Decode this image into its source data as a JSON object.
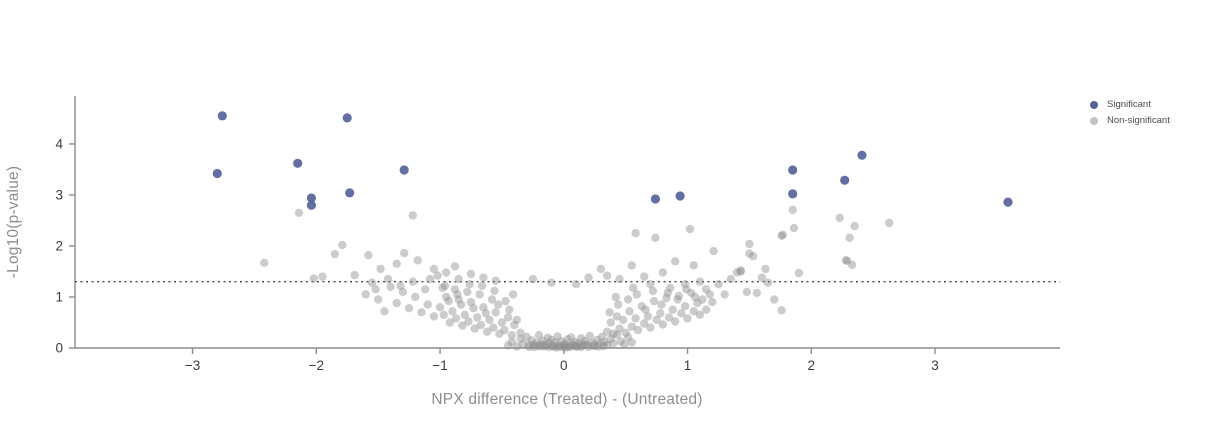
{
  "chart_data": {
    "type": "scatter",
    "title": "",
    "xlabel": "NPX difference (Treated) - (Untreated)",
    "ylabel": "-Log10(p-value)",
    "xlim": [
      -3.95,
      4.01
    ],
    "ylim": [
      0,
      4.94
    ],
    "x_ticks": [
      -3,
      -2,
      -1,
      0,
      1,
      2,
      3
    ],
    "y_ticks": [
      0,
      1,
      2,
      3,
      4
    ],
    "grid": false,
    "threshold_line": {
      "y": 1.3,
      "style": "dotted",
      "color": "#4a4a4a"
    },
    "legend": {
      "position": "top-right",
      "entries": [
        {
          "label": "Significant",
          "color": "#56639a"
        },
        {
          "label": "Non-significant",
          "color": "#c3c3c3"
        }
      ]
    },
    "colors": {
      "significant": "#56639a",
      "nonsignificant": "#8f8f8f",
      "axis": "#8c8c8c",
      "tick_label": "#3c3c3c",
      "axis_title": "#8e8e8e"
    },
    "series": [
      {
        "name": "Significant",
        "points": [
          [
            -2.8,
            3.42
          ],
          [
            -2.76,
            4.55
          ],
          [
            -2.15,
            3.62
          ],
          [
            -2.04,
            2.94
          ],
          [
            -2.04,
            2.8
          ],
          [
            -1.75,
            4.51
          ],
          [
            -1.73,
            3.04
          ],
          [
            -1.29,
            3.49
          ],
          [
            0.74,
            2.92
          ],
          [
            0.94,
            2.98
          ],
          [
            1.85,
            3.49
          ],
          [
            1.85,
            3.02
          ],
          [
            2.27,
            3.29
          ],
          [
            2.41,
            3.78
          ],
          [
            3.59,
            2.86
          ]
        ]
      },
      {
        "name": "Non-significant",
        "points": [
          [
            -0.45,
            0.05
          ],
          [
            -0.42,
            0.12
          ],
          [
            -0.38,
            0.03
          ],
          [
            -0.35,
            0.18
          ],
          [
            -0.33,
            0.08
          ],
          [
            -0.3,
            0.22
          ],
          [
            -0.28,
            0.06
          ],
          [
            -0.26,
            0.15
          ],
          [
            -0.24,
            0.02
          ],
          [
            -0.22,
            0.1
          ],
          [
            -0.2,
            0.25
          ],
          [
            -0.18,
            0.07
          ],
          [
            -0.17,
            0.14
          ],
          [
            -0.15,
            0.04
          ],
          [
            -0.13,
            0.2
          ],
          [
            -0.12,
            0.09
          ],
          [
            -0.1,
            0.16
          ],
          [
            -0.08,
            0.03
          ],
          [
            -0.07,
            0.11
          ],
          [
            -0.05,
            0.23
          ],
          [
            -0.04,
            0.05
          ],
          [
            -0.02,
            0.13
          ],
          [
            0.0,
            0.02
          ],
          [
            0.01,
            0.08
          ],
          [
            0.03,
            0.17
          ],
          [
            0.04,
            0.04
          ],
          [
            0.06,
            0.21
          ],
          [
            0.07,
            0.06
          ],
          [
            0.09,
            0.12
          ],
          [
            0.1,
            0.03
          ],
          [
            0.12,
            0.09
          ],
          [
            0.14,
            0.19
          ],
          [
            0.15,
            0.05
          ],
          [
            0.17,
            0.14
          ],
          [
            0.19,
            0.07
          ],
          [
            0.21,
            0.24
          ],
          [
            0.23,
            0.1
          ],
          [
            0.25,
            0.04
          ],
          [
            0.27,
            0.16
          ],
          [
            0.29,
            0.08
          ],
          [
            0.31,
            0.22
          ],
          [
            0.33,
            0.12
          ],
          [
            0.35,
            0.06
          ],
          [
            0.38,
            0.18
          ],
          [
            0.4,
            0.09
          ],
          [
            0.43,
            0.26
          ],
          [
            0.46,
            0.13
          ],
          [
            0.49,
            0.07
          ],
          [
            0.52,
            0.21
          ],
          [
            0.55,
            0.11
          ],
          [
            -0.06,
            0.01
          ],
          [
            -0.03,
            0.02
          ],
          [
            0.0,
            0.05
          ],
          [
            0.02,
            0.01
          ],
          [
            0.05,
            0.02
          ],
          [
            -0.09,
            0.04
          ],
          [
            0.08,
            0.05
          ],
          [
            -0.12,
            0.02
          ],
          [
            0.11,
            0.03
          ],
          [
            -0.15,
            0.05
          ],
          [
            0.14,
            0.02
          ],
          [
            -0.18,
            0.03
          ],
          [
            0.17,
            0.06
          ],
          [
            -0.21,
            0.04
          ],
          [
            0.2,
            0.02
          ],
          [
            0.24,
            0.05
          ],
          [
            -0.24,
            0.06
          ],
          [
            0.28,
            0.03
          ],
          [
            -0.28,
            0.02
          ],
          [
            0.32,
            0.04
          ],
          [
            -0.35,
            0.3
          ],
          [
            -0.4,
            0.45
          ],
          [
            -0.42,
            0.25
          ],
          [
            -0.45,
            0.6
          ],
          [
            -0.48,
            0.35
          ],
          [
            -0.5,
            0.5
          ],
          [
            -0.52,
            0.28
          ],
          [
            -0.55,
            0.7
          ],
          [
            -0.57,
            0.4
          ],
          [
            -0.6,
            0.55
          ],
          [
            -0.62,
            0.32
          ],
          [
            -0.65,
            0.8
          ],
          [
            -0.67,
            0.45
          ],
          [
            -0.7,
            0.6
          ],
          [
            -0.72,
            0.38
          ],
          [
            -0.75,
            0.9
          ],
          [
            -0.77,
            0.52
          ],
          [
            -0.8,
            0.65
          ],
          [
            -0.82,
            0.44
          ],
          [
            -0.85,
            0.95
          ],
          [
            -0.87,
            0.58
          ],
          [
            -0.9,
            0.72
          ],
          [
            -0.92,
            0.5
          ],
          [
            -0.95,
            1.0
          ],
          [
            -0.97,
            0.65
          ],
          [
            -1.0,
            0.8
          ],
          [
            -0.38,
            0.55
          ],
          [
            -0.44,
            0.75
          ],
          [
            -0.53,
            0.85
          ],
          [
            -0.58,
            0.95
          ],
          [
            -0.63,
            0.68
          ],
          [
            -0.68,
            1.05
          ],
          [
            -0.73,
            0.78
          ],
          [
            -0.78,
            1.1
          ],
          [
            -0.83,
            0.85
          ],
          [
            -0.88,
            1.15
          ],
          [
            -0.93,
            0.92
          ],
          [
            -0.98,
            1.18
          ],
          [
            -0.47,
            0.92
          ],
          [
            -0.56,
            1.12
          ],
          [
            -0.66,
            1.22
          ],
          [
            -0.76,
            1.25
          ],
          [
            -0.86,
            1.05
          ],
          [
            -0.96,
            1.22
          ],
          [
            -0.41,
            1.05
          ],
          [
            0.35,
            0.32
          ],
          [
            0.38,
            0.5
          ],
          [
            0.4,
            0.28
          ],
          [
            0.43,
            0.62
          ],
          [
            0.45,
            0.38
          ],
          [
            0.48,
            0.55
          ],
          [
            0.5,
            0.3
          ],
          [
            0.53,
            0.72
          ],
          [
            0.55,
            0.42
          ],
          [
            0.58,
            0.58
          ],
          [
            0.6,
            0.35
          ],
          [
            0.63,
            0.82
          ],
          [
            0.65,
            0.48
          ],
          [
            0.68,
            0.62
          ],
          [
            0.7,
            0.4
          ],
          [
            0.73,
            0.92
          ],
          [
            0.75,
            0.55
          ],
          [
            0.78,
            0.68
          ],
          [
            0.8,
            0.46
          ],
          [
            0.83,
            0.98
          ],
          [
            0.85,
            0.6
          ],
          [
            0.88,
            0.75
          ],
          [
            0.9,
            0.52
          ],
          [
            0.93,
            1.02
          ],
          [
            0.95,
            0.68
          ],
          [
            0.98,
            0.82
          ],
          [
            1.0,
            0.58
          ],
          [
            1.03,
            1.08
          ],
          [
            1.05,
            0.72
          ],
          [
            1.08,
            0.88
          ],
          [
            0.37,
            0.7
          ],
          [
            0.44,
            0.85
          ],
          [
            0.52,
            0.95
          ],
          [
            0.59,
            1.05
          ],
          [
            0.66,
            0.75
          ],
          [
            0.72,
            1.12
          ],
          [
            0.79,
            0.85
          ],
          [
            0.86,
            1.18
          ],
          [
            0.92,
            0.95
          ],
          [
            0.99,
            1.15
          ],
          [
            1.06,
            1.0
          ],
          [
            0.42,
            1.0
          ],
          [
            0.56,
            1.18
          ],
          [
            0.7,
            1.25
          ],
          [
            0.84,
            1.08
          ],
          [
            0.98,
            1.25
          ],
          [
            1.1,
            0.65
          ],
          [
            1.12,
            0.95
          ],
          [
            1.15,
            0.75
          ],
          [
            1.18,
            1.05
          ],
          [
            -1.05,
            0.62
          ],
          [
            -1.1,
            0.85
          ],
          [
            -1.15,
            0.7
          ],
          [
            -1.2,
            1.0
          ],
          [
            -1.25,
            0.78
          ],
          [
            -1.3,
            1.1
          ],
          [
            -1.35,
            0.88
          ],
          [
            -1.4,
            1.2
          ],
          [
            -1.45,
            0.72
          ],
          [
            -1.5,
            0.95
          ],
          [
            -1.55,
            1.28
          ],
          [
            -1.6,
            1.05
          ],
          [
            -1.12,
            1.15
          ],
          [
            -1.22,
            1.3
          ],
          [
            -1.32,
            1.22
          ],
          [
            -1.42,
            1.35
          ],
          [
            -1.08,
            1.35
          ],
          [
            -1.52,
            1.15
          ],
          [
            1.1,
            1.3
          ],
          [
            1.15,
            1.15
          ],
          [
            1.2,
            0.9
          ],
          [
            1.25,
            1.25
          ],
          [
            1.3,
            1.05
          ],
          [
            1.35,
            1.35
          ],
          [
            1.4,
            1.48
          ],
          [
            1.43,
            1.52
          ],
          [
            1.48,
            1.1
          ],
          [
            1.5,
            1.85
          ],
          [
            1.53,
            1.8
          ],
          [
            1.56,
            1.08
          ],
          [
            1.6,
            1.38
          ],
          [
            1.65,
            1.28
          ],
          [
            1.7,
            0.95
          ],
          [
            1.76,
            0.74
          ],
          [
            -2.42,
            1.67
          ],
          [
            -2.14,
            2.65
          ],
          [
            -2.02,
            1.36
          ],
          [
            -1.95,
            1.4
          ],
          [
            -1.85,
            1.84
          ],
          [
            -1.79,
            2.02
          ],
          [
            -1.69,
            1.43
          ],
          [
            -1.58,
            1.82
          ],
          [
            -1.29,
            1.86
          ],
          [
            -1.22,
            2.6
          ],
          [
            -1.35,
            1.65
          ],
          [
            -1.48,
            1.55
          ],
          [
            -1.18,
            1.72
          ],
          [
            -1.05,
            1.55
          ],
          [
            -0.95,
            1.48
          ],
          [
            -0.85,
            1.35
          ],
          [
            -0.75,
            1.45
          ],
          [
            -0.65,
            1.38
          ],
          [
            -0.55,
            1.32
          ],
          [
            -0.88,
            1.6
          ],
          [
            -1.02,
            1.42
          ],
          [
            0.3,
            1.55
          ],
          [
            0.45,
            1.35
          ],
          [
            0.55,
            1.62
          ],
          [
            0.65,
            1.4
          ],
          [
            0.74,
            2.16
          ],
          [
            0.8,
            1.48
          ],
          [
            0.9,
            1.7
          ],
          [
            1.02,
            2.33
          ],
          [
            1.05,
            1.62
          ],
          [
            1.21,
            1.9
          ],
          [
            1.43,
            1.5
          ],
          [
            1.5,
            2.04
          ],
          [
            1.63,
            1.55
          ],
          [
            1.76,
            2.2
          ],
          [
            1.77,
            2.22
          ],
          [
            1.85,
            2.71
          ],
          [
            1.86,
            2.35
          ],
          [
            1.9,
            1.47
          ],
          [
            2.23,
            2.55
          ],
          [
            2.28,
            1.72
          ],
          [
            2.29,
            1.71
          ],
          [
            2.33,
            1.63
          ],
          [
            2.35,
            2.39
          ],
          [
            2.31,
            2.16
          ],
          [
            2.63,
            2.45
          ],
          [
            0.35,
            1.42
          ],
          [
            0.2,
            1.38
          ],
          [
            0.1,
            1.25
          ],
          [
            -0.1,
            1.28
          ],
          [
            -0.25,
            1.35
          ],
          [
            0.58,
            2.25
          ]
        ]
      }
    ]
  }
}
